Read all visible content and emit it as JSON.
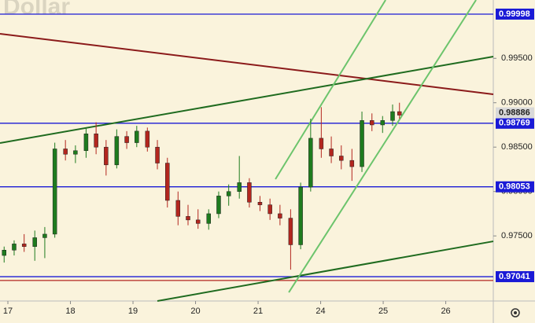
{
  "chart_data": {
    "type": "candlestick",
    "title": "Dollar",
    "background": "#faf3dc",
    "up_color": "#1e7b1e",
    "down_color": "#b3261e",
    "xlim": [
      -0.126,
      7.76
    ],
    "ylim": [
      0.96767,
      1.00157
    ],
    "xticks": [
      {
        "value": 0,
        "label": "17"
      },
      {
        "value": 1,
        "label": "18"
      },
      {
        "value": 2,
        "label": "19"
      },
      {
        "value": 3,
        "label": "20"
      },
      {
        "value": 4,
        "label": "21"
      },
      {
        "value": 5,
        "label": "24"
      },
      {
        "value": 6,
        "label": "25"
      },
      {
        "value": 7,
        "label": "26"
      }
    ],
    "yticks": [
      {
        "value": 0.975,
        "label": "0.97500"
      },
      {
        "value": 0.98,
        "label": "0.98000"
      },
      {
        "value": 0.985,
        "label": "0.98500"
      },
      {
        "value": 0.99,
        "label": "0.99000"
      },
      {
        "value": 0.995,
        "label": "0.99500"
      }
    ],
    "x": [
      -0.06,
      0.1,
      0.26,
      0.43,
      0.59,
      0.75,
      0.92,
      1.08,
      1.25,
      1.41,
      1.57,
      1.74,
      1.9,
      2.06,
      2.23,
      2.39,
      2.55,
      2.72,
      2.88,
      3.04,
      3.21,
      3.37,
      3.53,
      3.7,
      3.86,
      4.03,
      4.19,
      4.35,
      4.52,
      4.68,
      4.84,
      5.01,
      5.17,
      5.33,
      5.5,
      5.66,
      5.82,
      5.99,
      6.15,
      6.26
    ],
    "open": [
      0.9728,
      0.9734,
      0.9741,
      0.9738,
      0.9748,
      0.9752,
      0.9848,
      0.9842,
      0.9846,
      0.9865,
      0.985,
      0.983,
      0.9862,
      0.9855,
      0.9868,
      0.985,
      0.9832,
      0.979,
      0.9772,
      0.9768,
      0.9764,
      0.9775,
      0.9795,
      0.98,
      0.981,
      0.9788,
      0.9785,
      0.9775,
      0.977,
      0.974,
      0.9805,
      0.986,
      0.9848,
      0.984,
      0.9835,
      0.9828,
      0.988,
      0.9875,
      0.988,
      0.989
    ],
    "high": [
      0.9738,
      0.9745,
      0.9752,
      0.9756,
      0.976,
      0.9855,
      0.9858,
      0.9852,
      0.9872,
      0.9878,
      0.9858,
      0.987,
      0.9868,
      0.9874,
      0.9872,
      0.9858,
      0.9838,
      0.98,
      0.9785,
      0.978,
      0.978,
      0.98,
      0.9808,
      0.984,
      0.9815,
      0.9795,
      0.9792,
      0.9785,
      0.978,
      0.981,
      0.9882,
      0.9895,
      0.9862,
      0.9852,
      0.9848,
      0.989,
      0.9888,
      0.9885,
      0.9898,
      0.99
    ],
    "low": [
      0.972,
      0.9728,
      0.9732,
      0.9722,
      0.9725,
      0.9748,
      0.9835,
      0.9832,
      0.9838,
      0.9842,
      0.9818,
      0.9826,
      0.9848,
      0.985,
      0.9845,
      0.9825,
      0.9782,
      0.9762,
      0.9762,
      0.9758,
      0.9757,
      0.977,
      0.9784,
      0.9792,
      0.9782,
      0.9778,
      0.9768,
      0.9762,
      0.9712,
      0.9735,
      0.98,
      0.9838,
      0.9832,
      0.9825,
      0.9812,
      0.9822,
      0.9868,
      0.9866,
      0.9874,
      0.9882
    ],
    "close": [
      0.9734,
      0.9741,
      0.9738,
      0.9748,
      0.9752,
      0.9848,
      0.9842,
      0.9846,
      0.9865,
      0.985,
      0.983,
      0.9862,
      0.9855,
      0.9868,
      0.985,
      0.9832,
      0.979,
      0.9772,
      0.9768,
      0.9764,
      0.9775,
      0.9795,
      0.98,
      0.981,
      0.9788,
      0.9785,
      0.9775,
      0.977,
      0.974,
      0.9805,
      0.986,
      0.9848,
      0.984,
      0.9835,
      0.9828,
      0.988,
      0.9875,
      0.988,
      0.989,
      0.9886
    ],
    "levels": [
      {
        "value": 0.99998,
        "label": "0.99998",
        "color": "#1a1ad6"
      },
      {
        "value": 0.98769,
        "label": "0.98769",
        "color": "#1a1ad6"
      },
      {
        "value": 0.98053,
        "label": "0.98053",
        "color": "#1a1ad6"
      },
      {
        "value": 0.97041,
        "label": "0.97041",
        "color": "#1a1ad6"
      },
      {
        "value": 0.96998,
        "color": "#b3261e"
      }
    ],
    "last_price": {
      "value": 0.98886,
      "label": "0.98886"
    },
    "lines": [
      {
        "color": "#8b1a1a",
        "x": [
          -0.126,
          7.76
        ],
        "values": [
          0.99777,
          0.99095
        ]
      },
      {
        "color": "#1f6b1f",
        "x": [
          -0.126,
          7.76
        ],
        "values": [
          0.98546,
          0.9952
        ]
      },
      {
        "color": "#1f6b1f",
        "x": [
          2.39,
          7.76
        ],
        "values": [
          0.96767,
          0.97439
        ]
      },
      {
        "color": "#6cc46c",
        "x": [
          4.277,
          6.038
        ],
        "values": [
          0.98139,
          1.00157
        ]
      },
      {
        "color": "#6cc46c",
        "x": [
          4.491,
          7.484
        ],
        "values": [
          0.96864,
          1.00157
        ]
      }
    ]
  }
}
